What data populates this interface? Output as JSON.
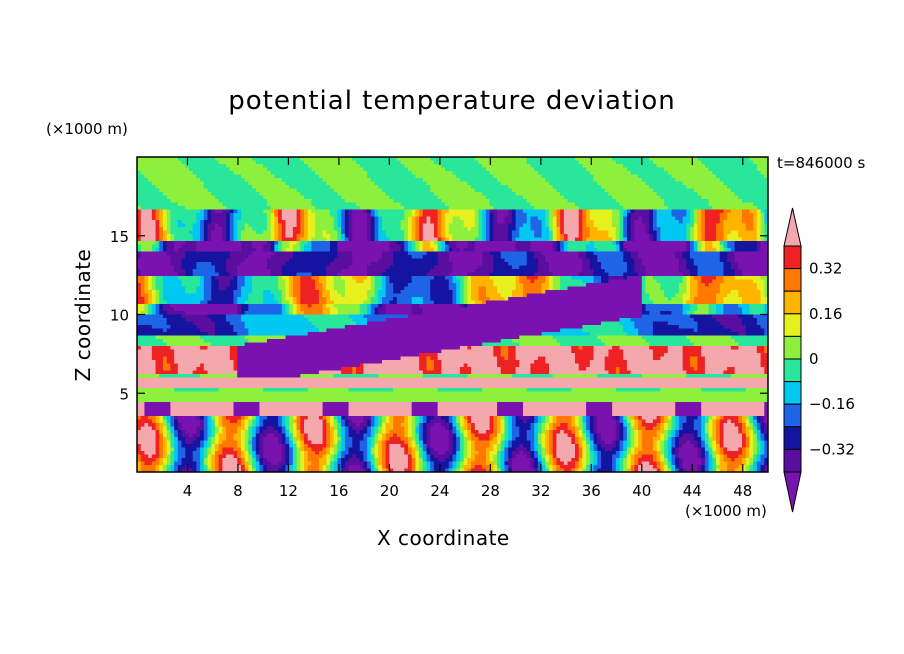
{
  "chart_data": {
    "type": "heatmap",
    "title": "potential temperature deviation",
    "xlabel": "X coordinate",
    "ylabel": "Z coordinate",
    "x_units": "(×1000 m)",
    "y_units": "(×1000 m)",
    "time_label": "t=846000 s",
    "xlim": [
      0,
      50
    ],
    "ylim": [
      0,
      20
    ],
    "x_ticks": [
      "4",
      "8",
      "12",
      "16",
      "20",
      "24",
      "28",
      "32",
      "36",
      "40",
      "44",
      "48"
    ],
    "y_ticks": [
      "5",
      "10",
      "15"
    ],
    "colorbar": {
      "levels": [
        -0.4,
        -0.32,
        -0.24,
        -0.16,
        -0.08,
        0,
        0.08,
        0.16,
        0.24,
        0.32,
        0.4
      ],
      "labeled_levels": [
        "0.32",
        "0.16",
        "0",
        "−0.16",
        "−0.32"
      ],
      "colors": [
        "#7a12b0",
        "#5a0ea0",
        "#1414a0",
        "#1e64e6",
        "#00c8f0",
        "#28e69a",
        "#8cf03c",
        "#e6f01e",
        "#ffb400",
        "#ff7800",
        "#ee2222",
        "#f4a7ac"
      ],
      "extends": "both"
    },
    "grid": false
  }
}
